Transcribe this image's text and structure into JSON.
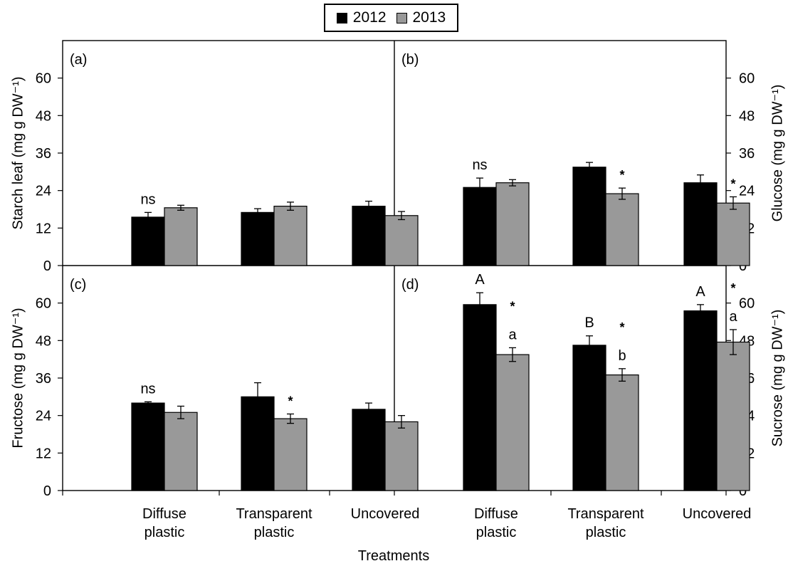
{
  "legend": [
    {
      "label": "2012",
      "color": "#000000"
    },
    {
      "label": "2013",
      "color": "#999999"
    }
  ],
  "xlabel": "Treatments",
  "chart_data": [
    {
      "type": "bar",
      "panel_label": "(a)",
      "ylabel": "Starch leaf (mg g DW⁻¹)",
      "ylim": [
        0,
        72
      ],
      "yticks": [
        "0",
        "12",
        "24",
        "36",
        "48",
        "60"
      ],
      "categories": [
        "Diffuse plastic",
        "Transparent plastic",
        "Uncovered"
      ],
      "series": [
        {
          "name": "2012",
          "color": "#000000",
          "values": [
            15.5,
            17,
            19
          ],
          "errors": [
            1.5,
            1.2,
            1.6
          ]
        },
        {
          "name": "2013",
          "color": "#999999",
          "values": [
            18.5,
            19,
            16
          ],
          "errors": [
            0.8,
            1.3,
            1.3
          ]
        }
      ],
      "annotations": [
        {
          "category": 0,
          "series": 0,
          "text": "ns"
        }
      ]
    },
    {
      "type": "bar",
      "panel_label": "(b)",
      "ylabel": "Glucose (mg g DW⁻¹)",
      "ylim": [
        0,
        72
      ],
      "yticks": [
        "0",
        "12",
        "24",
        "36",
        "48",
        "60"
      ],
      "categories": [
        "Diffuse plastic",
        "Transparent plastic",
        "Uncovered"
      ],
      "series": [
        {
          "name": "2012",
          "color": "#000000",
          "values": [
            25,
            31.5,
            26.5
          ],
          "errors": [
            3,
            1.5,
            2.5
          ]
        },
        {
          "name": "2013",
          "color": "#999999",
          "values": [
            26.5,
            23,
            20
          ],
          "errors": [
            1,
            1.8,
            2
          ]
        }
      ],
      "annotations": [
        {
          "category": 0,
          "series": 0,
          "text": "ns"
        },
        {
          "category": 1,
          "series": 1,
          "text": "*"
        },
        {
          "category": 2,
          "series": 1,
          "text": "*"
        }
      ]
    },
    {
      "type": "bar",
      "panel_label": "(c)",
      "ylabel": "Fructose (mg g DW⁻¹)",
      "ylim": [
        0,
        72
      ],
      "yticks": [
        "0",
        "12",
        "24",
        "36",
        "48",
        "60"
      ],
      "categories": [
        "Diffuse plastic",
        "Transparent plastic",
        "Uncovered"
      ],
      "series": [
        {
          "name": "2012",
          "color": "#000000",
          "values": [
            28,
            30,
            26
          ],
          "errors": [
            0.4,
            4.5,
            2
          ]
        },
        {
          "name": "2013",
          "color": "#999999",
          "values": [
            25,
            23,
            22
          ],
          "errors": [
            2,
            1.5,
            2
          ]
        }
      ],
      "annotations": [
        {
          "category": 0,
          "series": 0,
          "text": "ns"
        },
        {
          "category": 1,
          "series": 1,
          "text": "*"
        }
      ]
    },
    {
      "type": "bar",
      "panel_label": "(d)",
      "ylabel": "Sucrose (mg g DW⁻¹)",
      "ylim": [
        0,
        72
      ],
      "yticks": [
        "0",
        "12",
        "24",
        "36",
        "48",
        "60"
      ],
      "categories": [
        "Diffuse plastic",
        "Transparent plastic",
        "Uncovered"
      ],
      "series": [
        {
          "name": "2012",
          "color": "#000000",
          "values": [
            59.5,
            46.5,
            57.5
          ],
          "errors": [
            3.8,
            3,
            2
          ]
        },
        {
          "name": "2013",
          "color": "#999999",
          "values": [
            43.5,
            37,
            47.5
          ],
          "errors": [
            2.2,
            2,
            4
          ]
        }
      ],
      "annotations": [
        {
          "category": 0,
          "series": 0,
          "text": "A"
        },
        {
          "category": 0,
          "series": 1,
          "text": "a"
        },
        {
          "category": 0,
          "series": 1,
          "text": "*"
        },
        {
          "category": 1,
          "series": 0,
          "text": "B"
        },
        {
          "category": 1,
          "series": 1,
          "text": "b"
        },
        {
          "category": 1,
          "series": 1,
          "text": "*"
        },
        {
          "category": 2,
          "series": 0,
          "text": "A"
        },
        {
          "category": 2,
          "series": 1,
          "text": "a"
        },
        {
          "category": 2,
          "series": 1,
          "text": "*"
        }
      ]
    }
  ],
  "xtick_labels": [
    [
      "Diffuse",
      "plastic"
    ],
    [
      "Transparent",
      "plastic"
    ],
    [
      "Uncovered"
    ]
  ]
}
